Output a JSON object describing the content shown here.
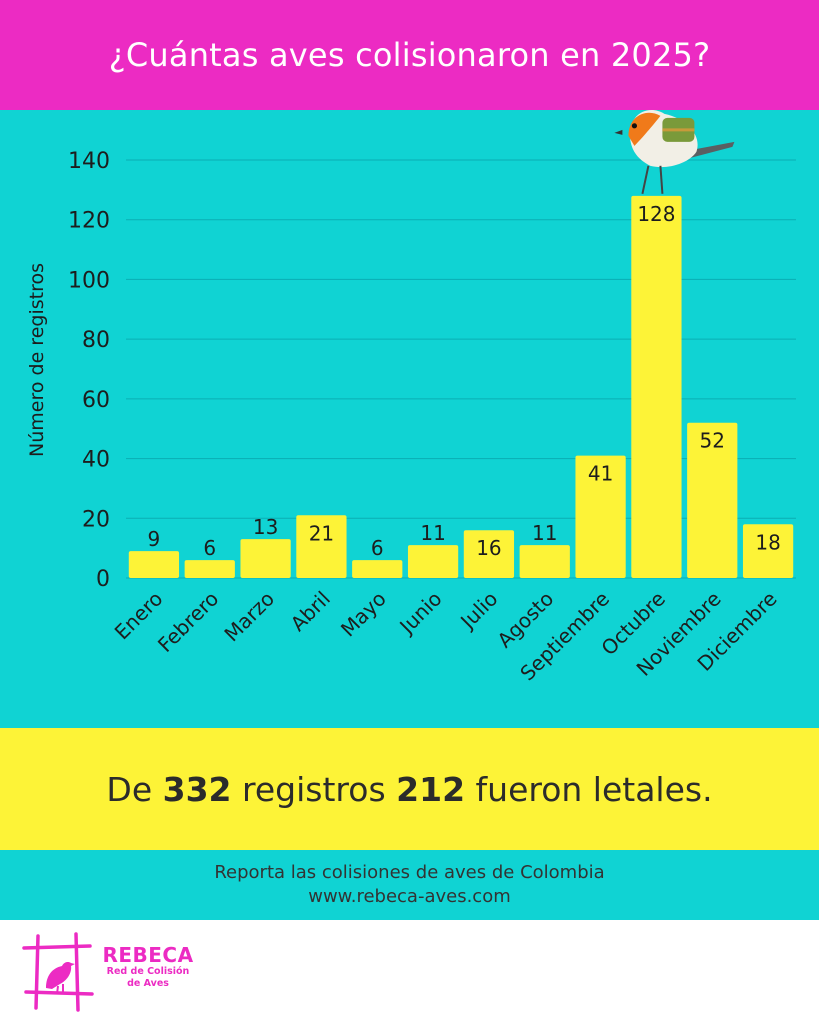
{
  "colors": {
    "header_bg": "#ec2bc3",
    "chart_bg": "#10d3d3",
    "bar_fill": "#fdf337",
    "summary_bg": "#fdf337",
    "brand": "#ec2bc3",
    "text_dark": "#1d1d1d"
  },
  "header": {
    "title": "¿Cuántas aves colisionaron en 2025?"
  },
  "chart_data": {
    "type": "bar",
    "title": "¿Cuántas aves colisionaron en 2025?",
    "xlabel": "",
    "ylabel": "Número de registros",
    "ylim": [
      0,
      140
    ],
    "yticks": [
      0,
      20,
      40,
      60,
      80,
      100,
      120,
      140
    ],
    "grid": true,
    "categories": [
      "Enero",
      "Febrero",
      "Marzo",
      "Abril",
      "Mayo",
      "Junio",
      "Julio",
      "Agosto",
      "Septiembre",
      "Octubre",
      "Noviembre",
      "Diciembre"
    ],
    "values": [
      9,
      6,
      13,
      21,
      6,
      11,
      16,
      11,
      41,
      128,
      52,
      18
    ],
    "data_labels": true
  },
  "summary": {
    "prefix": "De",
    "total": "332",
    "middle": "registros",
    "lethal": "212",
    "suffix": "fueron letales."
  },
  "footer": {
    "line1": "Reporta las colisiones de aves  de Colombia",
    "line2": "www.rebeca-aves.com"
  },
  "logo": {
    "name": "REBECA",
    "subtitle_line1": "Red de Colisión",
    "subtitle_line2": "de Aves",
    "icon": "bird-frame-icon"
  },
  "decoration": {
    "icon": "bird-mascot-icon"
  }
}
